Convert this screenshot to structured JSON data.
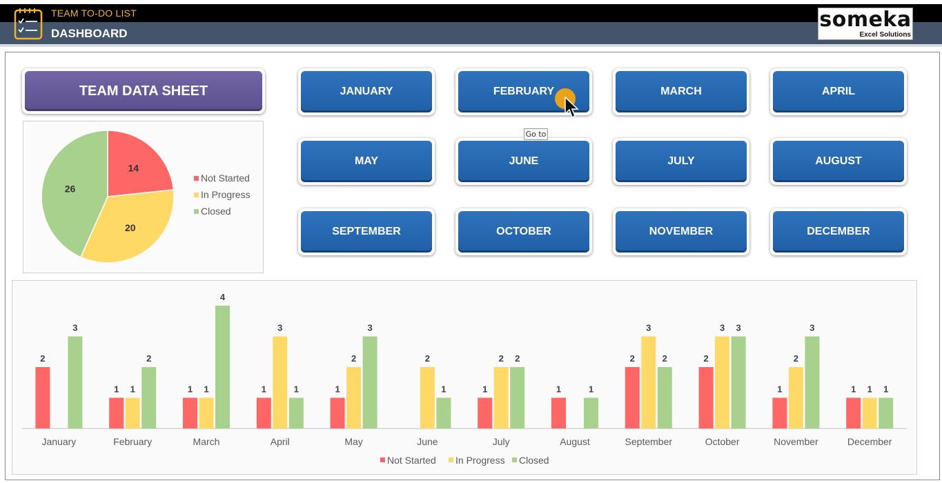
{
  "header": {
    "subtitle": "TEAM TO-DO LIST",
    "title": "DASHBOARD",
    "app_icon": "checklist-icon",
    "logo": {
      "word": "someka",
      "tagline": "Excel Solutions"
    }
  },
  "team_button": {
    "label": "TEAM DATA SHEET"
  },
  "months": [
    {
      "label": "JANUARY"
    },
    {
      "label": "FEBRUARY"
    },
    {
      "label": "MARCH"
    },
    {
      "label": "APRIL"
    },
    {
      "label": "MAY"
    },
    {
      "label": "JUNE"
    },
    {
      "label": "JULY"
    },
    {
      "label": "AUGUST"
    },
    {
      "label": "SEPTEMBER"
    },
    {
      "label": "OCTOBER"
    },
    {
      "label": "NOVEMBER"
    },
    {
      "label": "DECEMBER"
    }
  ],
  "tooltip": {
    "text": "Go to"
  },
  "cursor": {
    "icon": "mouse-pointer-icon"
  },
  "colors": {
    "header_black": "#000000",
    "header_blue": "#44546a",
    "accent_orange": "#f5b323",
    "button_blue": "#2667b1",
    "button_purple": "#6a5d9b",
    "not_started": "#ff6666",
    "in_progress": "#ffd966",
    "closed": "#a9d18e"
  },
  "chart_data": [
    {
      "type": "pie",
      "categories": [
        "Not Started",
        "In Progress",
        "Closed"
      ],
      "values": [
        14,
        20,
        26
      ],
      "legend_position": "right"
    },
    {
      "type": "bar",
      "categories": [
        "January",
        "February",
        "March",
        "April",
        "May",
        "June",
        "July",
        "August",
        "September",
        "October",
        "November",
        "December"
      ],
      "series": [
        {
          "name": "Not Started",
          "values": [
            2,
            1,
            1,
            1,
            1,
            null,
            1,
            1,
            2,
            2,
            1,
            1
          ]
        },
        {
          "name": "In Progress",
          "values": [
            null,
            1,
            1,
            3,
            2,
            2,
            2,
            null,
            3,
            3,
            2,
            1
          ]
        },
        {
          "name": "Closed",
          "values": [
            3,
            2,
            4,
            1,
            3,
            1,
            2,
            1,
            2,
            3,
            3,
            1
          ]
        }
      ],
      "ylim": [
        0,
        4
      ],
      "grid": false,
      "legend_position": "bottom"
    }
  ]
}
